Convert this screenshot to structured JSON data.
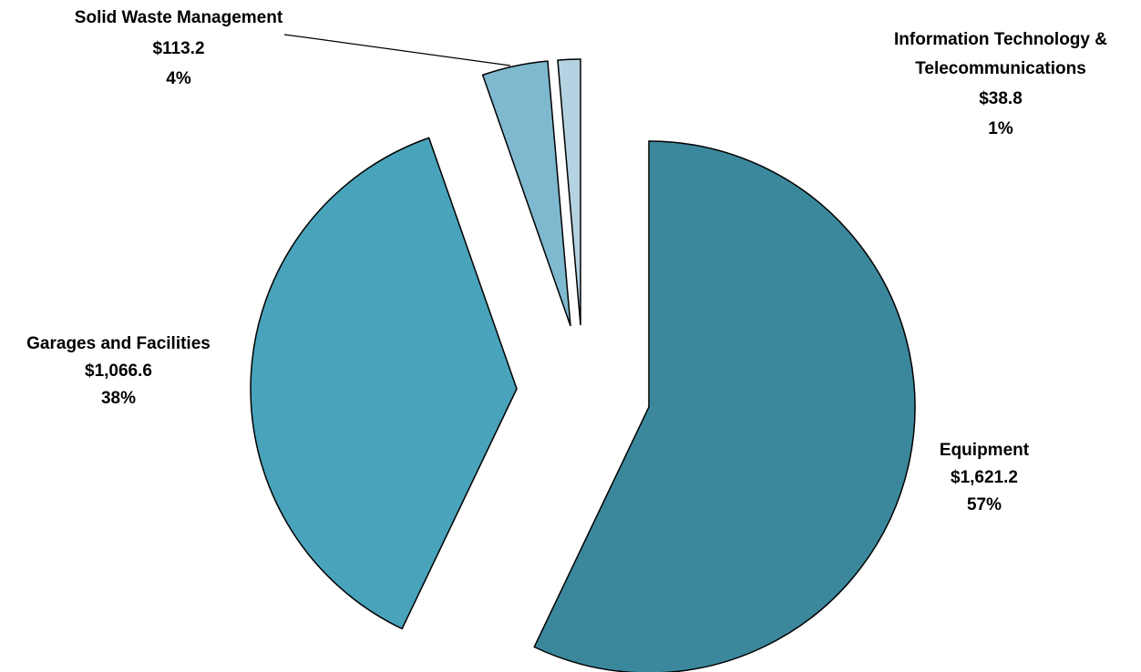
{
  "chart_data": {
    "type": "pie",
    "title": "",
    "legend": "none",
    "slices": [
      {
        "name": "Equipment",
        "value": 1621.2,
        "value_label": "$1,621.2",
        "percent_label": "57%",
        "color": "#3B889C"
      },
      {
        "name": "Garages and Facilities",
        "value": 1066.6,
        "value_label": "$1,066.6",
        "percent_label": "38%",
        "color": "#49A3BA"
      },
      {
        "name": "Solid Waste Management",
        "value": 113.2,
        "value_label": "$113.2",
        "percent_label": "4%",
        "color": "#7EB9CF"
      },
      {
        "name": "Information Technology & Telecommunications",
        "value": 38.8,
        "value_label": "$38.8",
        "percent_label": "1%",
        "color": "#B4D2E1"
      }
    ]
  },
  "labels": {
    "equipment": {
      "line1": "Equipment",
      "line2": "$1,621.2",
      "line3": "57%"
    },
    "garages": {
      "line1": "Garages and Facilities",
      "line2": "$1,066.6",
      "line3": "38%"
    },
    "solid_waste": {
      "line1": "Solid Waste Management",
      "line2": "$113.2",
      "line3": "4%"
    },
    "it": {
      "line1": "Information Technology &",
      "line2": "Telecommunications",
      "line3": "$38.8",
      "line4": "1%"
    }
  }
}
